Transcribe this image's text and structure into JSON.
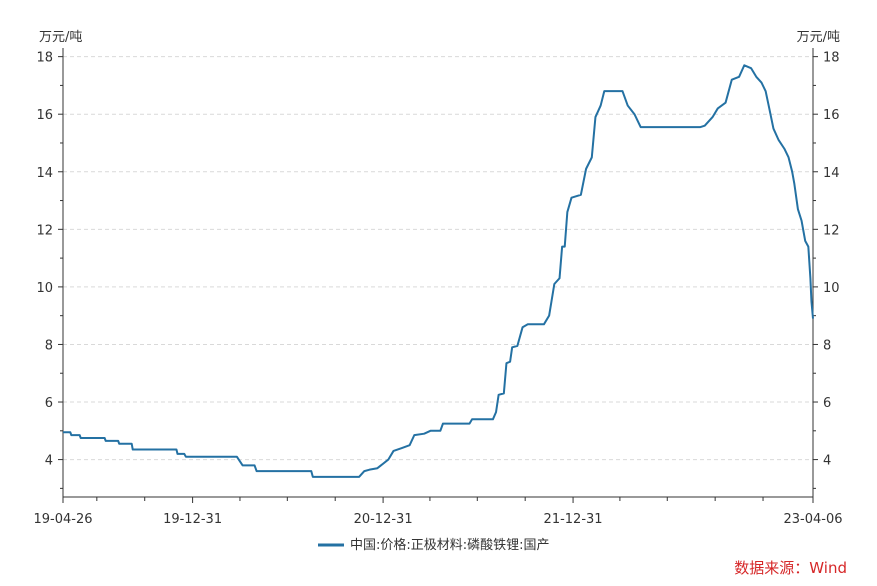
{
  "chart_data": {
    "type": "line",
    "title": "",
    "unit_left": "万元/吨",
    "unit_right": "万元/吨",
    "xlabel": "",
    "ylabel": "",
    "ylim": [
      2.7,
      18.3
    ],
    "y_ticks": [
      4,
      6,
      8,
      10,
      12,
      14,
      16,
      18
    ],
    "x_ticks": [
      "19-04-26",
      "19-12-31",
      "20-12-31",
      "21-12-31",
      "23-04-06"
    ],
    "grid": "horizontal-dashed",
    "legend_position": "bottom-center",
    "source_text": "数据来源：Wind",
    "color": "#2471a3",
    "series": [
      {
        "name": "中国:价格:正极材料:磷酸铁锂:国产",
        "points": [
          [
            "2019-04-26",
            4.95
          ],
          [
            "2019-05-10",
            4.95
          ],
          [
            "2019-05-12",
            4.85
          ],
          [
            "2019-05-28",
            4.85
          ],
          [
            "2019-05-30",
            4.75
          ],
          [
            "2019-07-15",
            4.75
          ],
          [
            "2019-07-17",
            4.65
          ],
          [
            "2019-08-10",
            4.65
          ],
          [
            "2019-08-12",
            4.55
          ],
          [
            "2019-09-05",
            4.55
          ],
          [
            "2019-09-07",
            4.35
          ],
          [
            "2019-11-30",
            4.35
          ],
          [
            "2019-12-02",
            4.2
          ],
          [
            "2019-12-15",
            4.2
          ],
          [
            "2019-12-18",
            4.1
          ],
          [
            "2020-03-25",
            4.1
          ],
          [
            "2020-04-05",
            3.8
          ],
          [
            "2020-04-28",
            3.8
          ],
          [
            "2020-05-02",
            3.6
          ],
          [
            "2020-08-15",
            3.6
          ],
          [
            "2020-08-18",
            3.4
          ],
          [
            "2020-11-15",
            3.4
          ],
          [
            "2020-11-25",
            3.6
          ],
          [
            "2020-12-05",
            3.65
          ],
          [
            "2020-12-20",
            3.7
          ],
          [
            "2021-01-10",
            4.0
          ],
          [
            "2021-01-20",
            4.3
          ],
          [
            "2021-02-05",
            4.4
          ],
          [
            "2021-02-20",
            4.5
          ],
          [
            "2021-03-01",
            4.85
          ],
          [
            "2021-03-20",
            4.9
          ],
          [
            "2021-04-01",
            5.0
          ],
          [
            "2021-04-20",
            5.0
          ],
          [
            "2021-04-25",
            5.25
          ],
          [
            "2021-06-15",
            5.25
          ],
          [
            "2021-06-20",
            5.4
          ],
          [
            "2021-07-30",
            5.4
          ],
          [
            "2021-08-05",
            5.65
          ],
          [
            "2021-08-10",
            6.25
          ],
          [
            "2021-08-20",
            6.3
          ],
          [
            "2021-08-25",
            7.35
          ],
          [
            "2021-09-01",
            7.4
          ],
          [
            "2021-09-05",
            7.9
          ],
          [
            "2021-09-15",
            7.95
          ],
          [
            "2021-09-25",
            8.6
          ],
          [
            "2021-10-05",
            8.7
          ],
          [
            "2021-11-05",
            8.7
          ],
          [
            "2021-11-15",
            9.0
          ],
          [
            "2021-11-25",
            10.1
          ],
          [
            "2021-12-05",
            10.3
          ],
          [
            "2021-12-10",
            11.4
          ],
          [
            "2021-12-15",
            11.4
          ],
          [
            "2021-12-20",
            12.6
          ],
          [
            "2021-12-28",
            13.1
          ],
          [
            "2022-01-15",
            13.2
          ],
          [
            "2022-01-25",
            14.1
          ],
          [
            "2022-02-05",
            14.5
          ],
          [
            "2022-02-12",
            15.9
          ],
          [
            "2022-02-22",
            16.3
          ],
          [
            "2022-03-01",
            16.8
          ],
          [
            "2022-04-05",
            16.8
          ],
          [
            "2022-04-15",
            16.3
          ],
          [
            "2022-04-28",
            16.0
          ],
          [
            "2022-05-10",
            15.55
          ],
          [
            "2022-09-01",
            15.55
          ],
          [
            "2022-09-10",
            15.6
          ],
          [
            "2022-09-25",
            15.9
          ],
          [
            "2022-10-05",
            16.2
          ],
          [
            "2022-10-20",
            16.4
          ],
          [
            "2022-11-01",
            17.2
          ],
          [
            "2022-11-15",
            17.3
          ],
          [
            "2022-11-25",
            17.7
          ],
          [
            "2022-12-08",
            17.6
          ],
          [
            "2022-12-18",
            17.3
          ],
          [
            "2022-12-28",
            17.1
          ],
          [
            "2023-01-05",
            16.8
          ],
          [
            "2023-01-12",
            16.2
          ],
          [
            "2023-01-20",
            15.5
          ],
          [
            "2023-01-30",
            15.1
          ],
          [
            "2023-02-10",
            14.8
          ],
          [
            "2023-02-18",
            14.5
          ],
          [
            "2023-02-25",
            14.0
          ],
          [
            "2023-03-01",
            13.6
          ],
          [
            "2023-03-08",
            12.7
          ],
          [
            "2023-03-15",
            12.3
          ],
          [
            "2023-03-22",
            11.6
          ],
          [
            "2023-03-28",
            11.4
          ],
          [
            "2023-04-01",
            10.3
          ],
          [
            "2023-04-03",
            9.5
          ],
          [
            "2023-04-06",
            8.9
          ]
        ]
      }
    ]
  }
}
